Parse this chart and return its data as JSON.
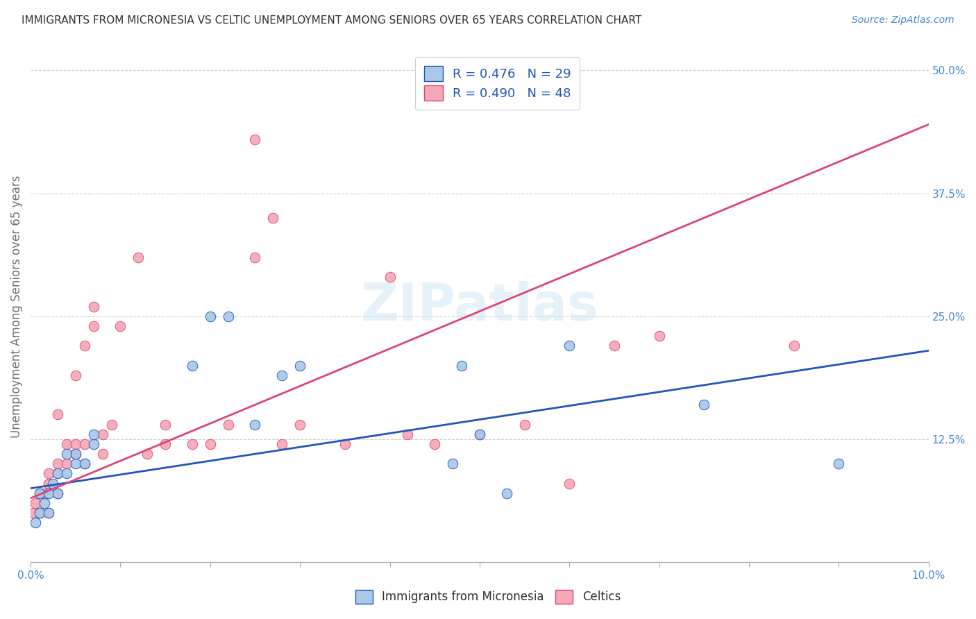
{
  "title": "IMMIGRANTS FROM MICRONESIA VS CELTIC UNEMPLOYMENT AMONG SENIORS OVER 65 YEARS CORRELATION CHART",
  "source": "Source: ZipAtlas.com",
  "ylabel": "Unemployment Among Seniors over 65 years",
  "xlim": [
    0.0,
    0.1
  ],
  "ylim": [
    0.0,
    0.52
  ],
  "xticks": [
    0.0,
    0.01,
    0.02,
    0.03,
    0.04,
    0.05,
    0.06,
    0.07,
    0.08,
    0.09,
    0.1
  ],
  "xticklabels": [
    "0.0%",
    "",
    "",
    "",
    "",
    "",
    "",
    "",
    "",
    "",
    "10.0%"
  ],
  "yticks_right": [
    0.0,
    0.125,
    0.25,
    0.375,
    0.5
  ],
  "yticklabels_right": [
    "",
    "12.5%",
    "25.0%",
    "37.5%",
    "50.0%"
  ],
  "blue_R": "0.476",
  "blue_N": "29",
  "pink_R": "0.490",
  "pink_N": "48",
  "blue_color": "#a8c8e8",
  "pink_color": "#f4a8b8",
  "blue_line_color": "#2255bb",
  "pink_line_color": "#dd4477",
  "title_color": "#303030",
  "axis_label_color": "#4488cc",
  "legend_R_color": "#2255bb",
  "watermark": "ZIPatlas",
  "blue_scatter_x": [
    0.0005,
    0.001,
    0.001,
    0.0015,
    0.002,
    0.002,
    0.0025,
    0.003,
    0.003,
    0.004,
    0.004,
    0.005,
    0.005,
    0.006,
    0.007,
    0.007,
    0.018,
    0.02,
    0.022,
    0.025,
    0.028,
    0.03,
    0.047,
    0.048,
    0.05,
    0.053,
    0.06,
    0.075,
    0.09
  ],
  "blue_scatter_y": [
    0.04,
    0.05,
    0.07,
    0.06,
    0.05,
    0.07,
    0.08,
    0.07,
    0.09,
    0.09,
    0.11,
    0.1,
    0.11,
    0.1,
    0.12,
    0.13,
    0.2,
    0.25,
    0.25,
    0.14,
    0.19,
    0.2,
    0.1,
    0.2,
    0.13,
    0.07,
    0.22,
    0.16,
    0.1
  ],
  "pink_scatter_x": [
    0.0003,
    0.0005,
    0.001,
    0.001,
    0.0015,
    0.002,
    0.002,
    0.002,
    0.003,
    0.003,
    0.003,
    0.003,
    0.004,
    0.004,
    0.005,
    0.005,
    0.005,
    0.006,
    0.006,
    0.006,
    0.007,
    0.007,
    0.008,
    0.008,
    0.009,
    0.01,
    0.012,
    0.013,
    0.015,
    0.015,
    0.018,
    0.02,
    0.022,
    0.025,
    0.025,
    0.027,
    0.028,
    0.03,
    0.035,
    0.04,
    0.042,
    0.045,
    0.05,
    0.055,
    0.06,
    0.065,
    0.07,
    0.085
  ],
  "pink_scatter_y": [
    0.05,
    0.06,
    0.05,
    0.07,
    0.07,
    0.05,
    0.08,
    0.09,
    0.07,
    0.09,
    0.1,
    0.15,
    0.1,
    0.12,
    0.11,
    0.12,
    0.19,
    0.1,
    0.12,
    0.22,
    0.24,
    0.26,
    0.11,
    0.13,
    0.14,
    0.24,
    0.31,
    0.11,
    0.12,
    0.14,
    0.12,
    0.12,
    0.14,
    0.43,
    0.31,
    0.35,
    0.12,
    0.14,
    0.12,
    0.29,
    0.13,
    0.12,
    0.13,
    0.14,
    0.08,
    0.22,
    0.23,
    0.22
  ],
  "blue_trend_x": [
    0.0,
    0.1
  ],
  "blue_trend_y": [
    0.075,
    0.215
  ],
  "pink_trend_x": [
    0.0,
    0.1
  ],
  "pink_trend_y": [
    0.065,
    0.445
  ]
}
